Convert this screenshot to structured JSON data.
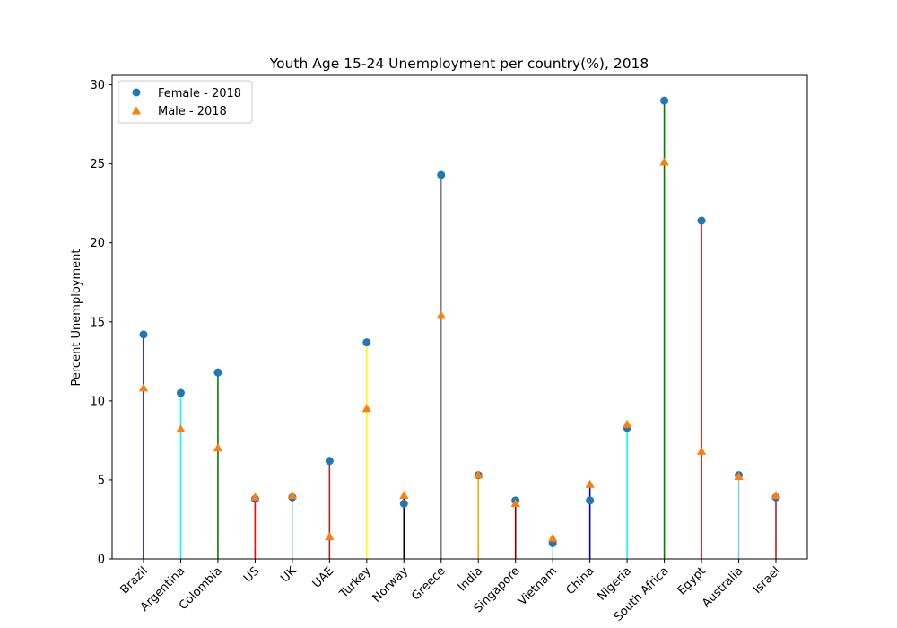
{
  "chart_data": {
    "type": "lollipop",
    "title": "Youth Age 15-24 Unemployment per country(%), 2018",
    "xlabel": "",
    "ylabel": "Percent Unemployment",
    "ylim": [
      0,
      30.6
    ],
    "yticks": [
      0,
      5,
      10,
      15,
      20,
      25,
      30
    ],
    "grid": false,
    "legend_position": "top-left",
    "categories": [
      "Brazil",
      "Argentina",
      "Colombia",
      "US",
      "UK",
      "UAE",
      "Turkey",
      "Norway",
      "Greece",
      "India",
      "Singapore",
      "Vietnam",
      "China",
      "Nigeria",
      "South Africa",
      "Egypt",
      "Australia",
      "Israel"
    ],
    "stem_colors": [
      "#0000cd",
      "#00ffff",
      "#008000",
      "#ff0000",
      "#87ceeb",
      "#b22222",
      "#ffff00",
      "#000000",
      "#808080",
      "#ffa500",
      "#800000",
      "#90ee90",
      "#0000cd",
      "#00ffff",
      "#008000",
      "#ff0000",
      "#87ceeb",
      "#b22222"
    ],
    "series": [
      {
        "name": "Female - 2018",
        "marker": "circle",
        "color": "#1f77b4",
        "values": [
          14.2,
          10.5,
          11.8,
          3.8,
          3.9,
          6.2,
          13.7,
          3.5,
          24.3,
          5.3,
          3.7,
          1.0,
          3.7,
          8.3,
          29.0,
          21.4,
          5.3,
          3.9
        ]
      },
      {
        "name": "Male - 2018",
        "marker": "triangle",
        "color": "#ff7f0e",
        "values": [
          10.8,
          8.2,
          7.0,
          3.9,
          4.0,
          1.4,
          9.5,
          4.0,
          15.4,
          5.3,
          3.5,
          1.3,
          4.7,
          8.5,
          25.1,
          6.8,
          5.2,
          4.0
        ]
      }
    ]
  }
}
